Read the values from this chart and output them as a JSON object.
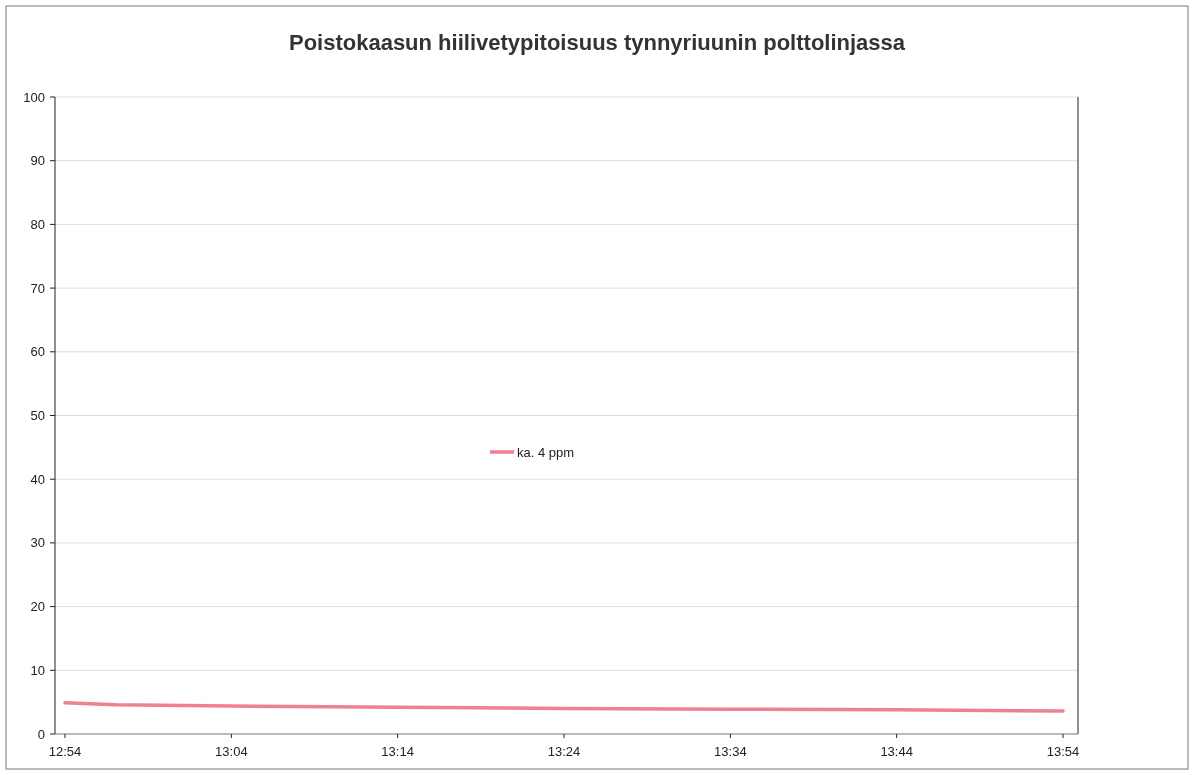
{
  "chart_data": {
    "type": "line",
    "title": "Poistokaasun hiilivetypitoisuus tynnyriuunin polttolinjassa",
    "x": [
      12.9,
      12.95,
      13.0667,
      13.2333,
      13.4,
      13.5667,
      13.7333,
      13.9
    ],
    "series": [
      {
        "name": "ka. 4 ppm",
        "color": "#f08090",
        "values": [
          4.9,
          4.6,
          4.4,
          4.2,
          4.0,
          3.9,
          3.8,
          3.6
        ]
      }
    ],
    "xlim": [
      12.89,
      13.915
    ],
    "ylim": [
      0,
      100
    ],
    "xticks": [
      {
        "value": 12.9,
        "label": "12:54"
      },
      {
        "value": 13.0667,
        "label": "13:04"
      },
      {
        "value": 13.2333,
        "label": "13:14"
      },
      {
        "value": 13.4,
        "label": "13:24"
      },
      {
        "value": 13.5667,
        "label": "13:34"
      },
      {
        "value": 13.7333,
        "label": "13:44"
      },
      {
        "value": 13.9,
        "label": "13:54"
      }
    ],
    "yticks": [
      0,
      10,
      20,
      30,
      40,
      50,
      60,
      70,
      80,
      90,
      100
    ],
    "grid": "y",
    "legend": "center",
    "marker": "none",
    "line_style": "solid"
  }
}
